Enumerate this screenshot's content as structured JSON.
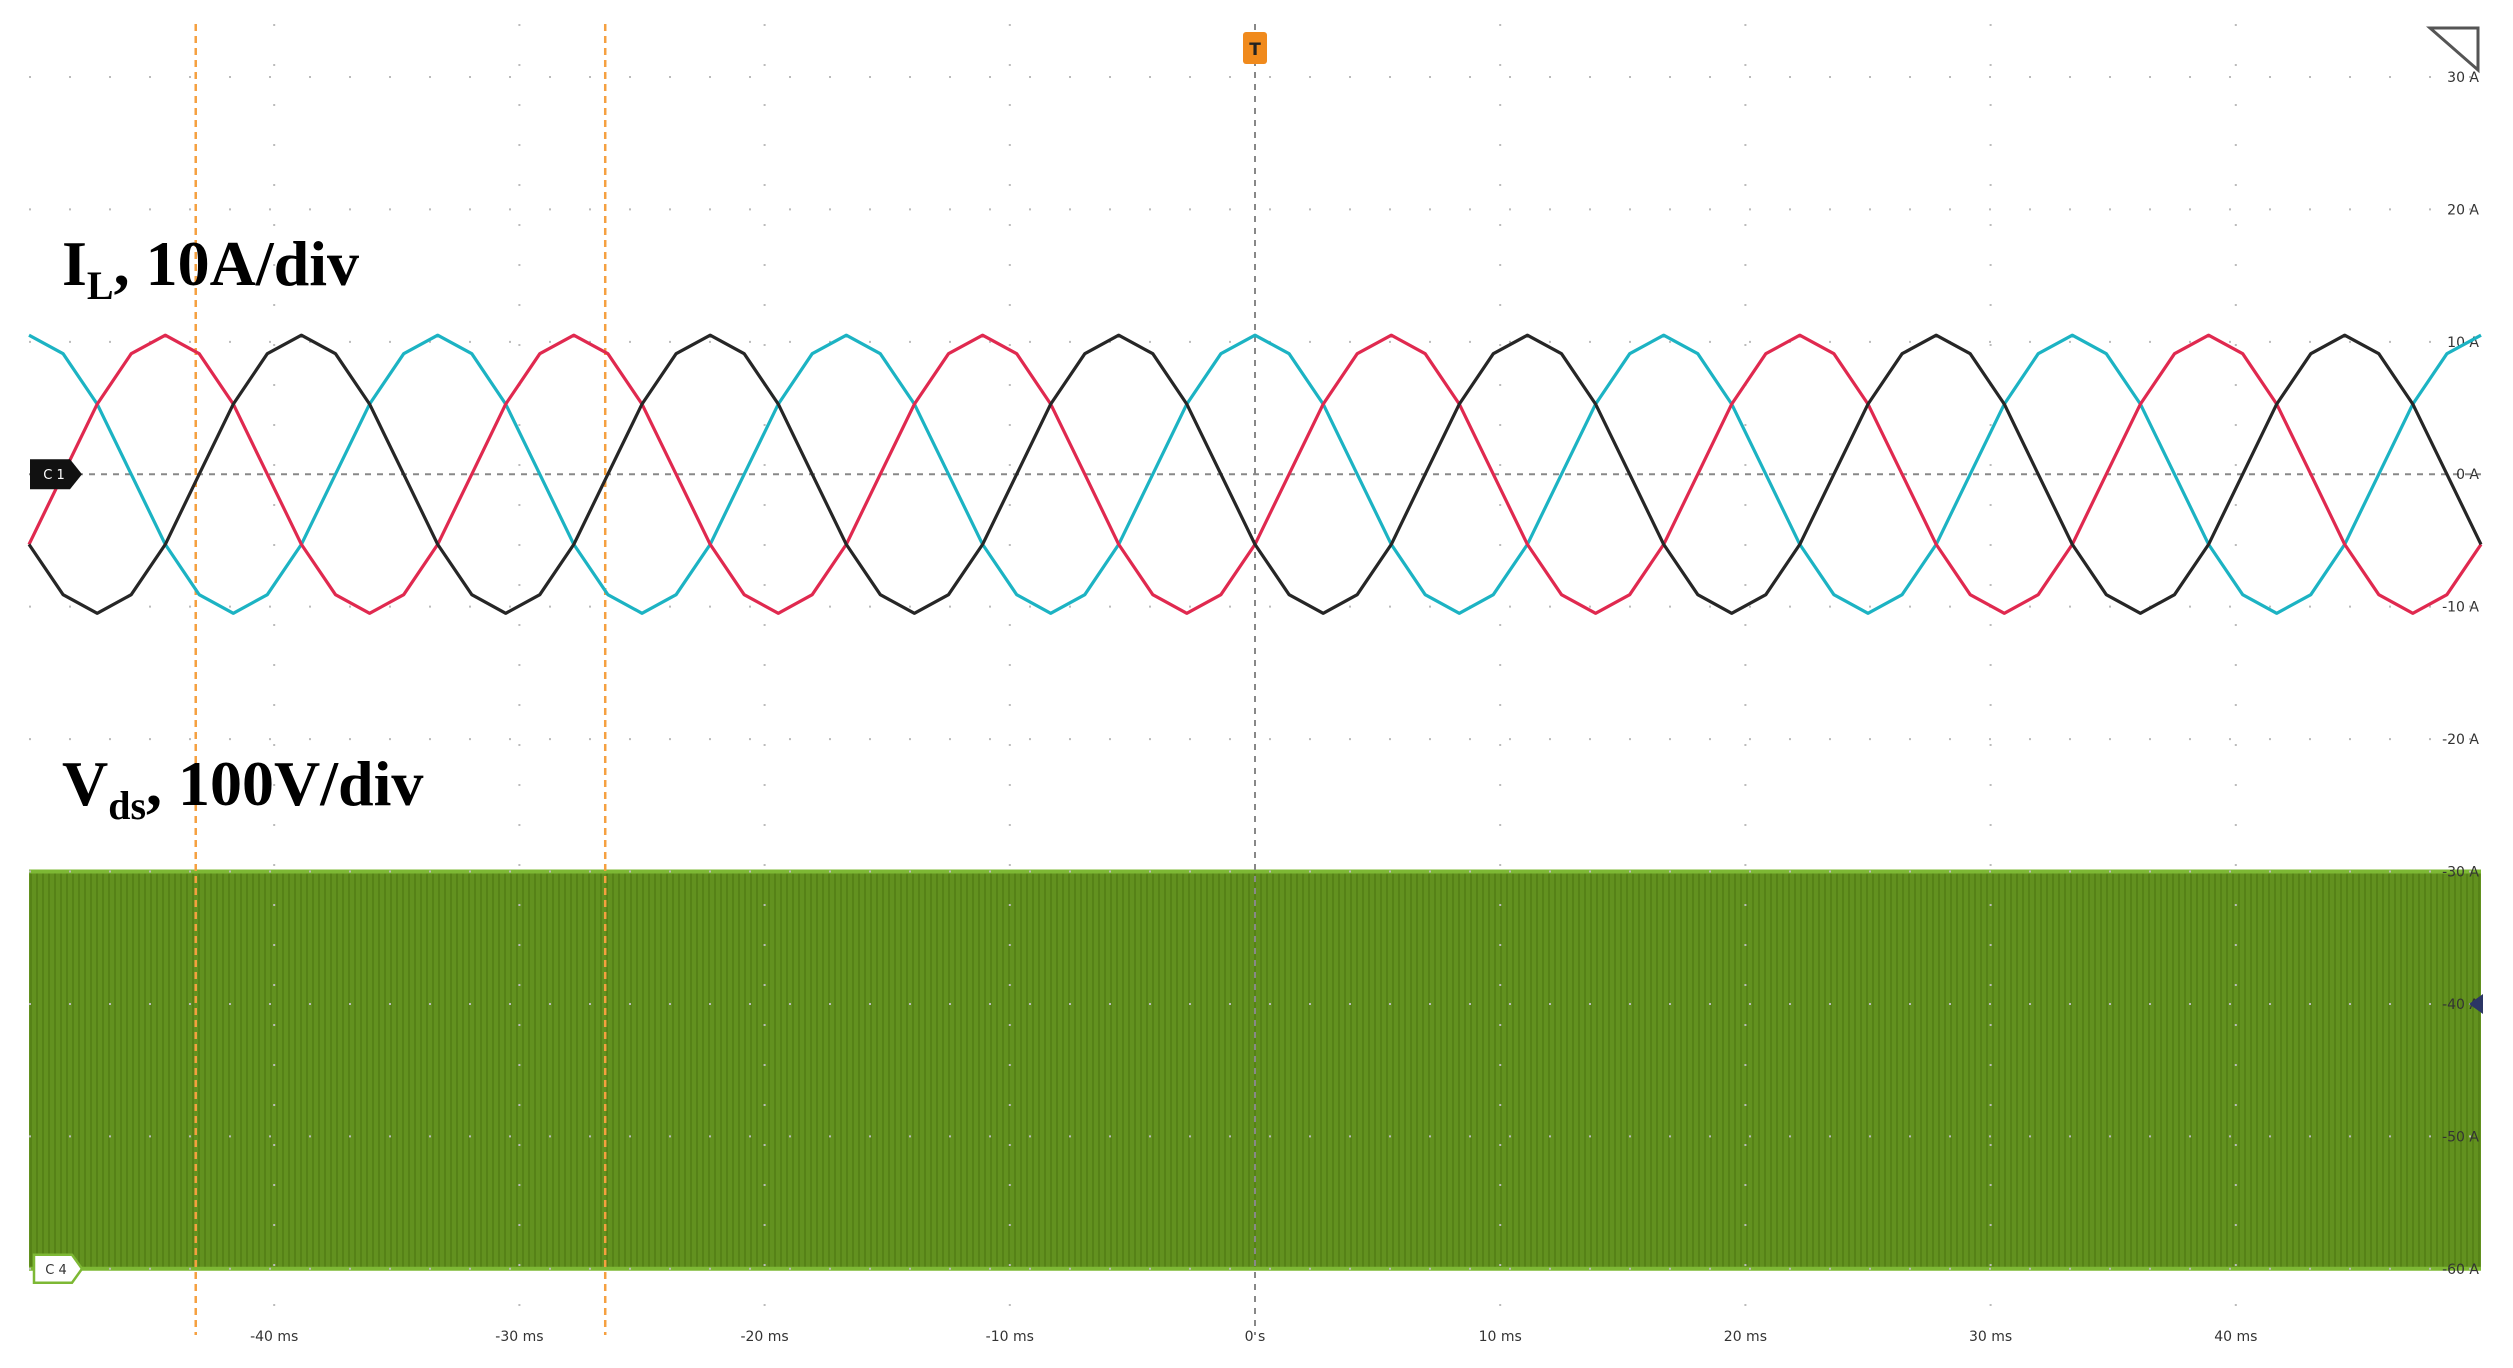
{
  "chart_data": {
    "type": "line",
    "annotations": [
      {
        "main": "I",
        "sub": "L",
        "rest": ", 10A/div"
      },
      {
        "main": "V",
        "sub": "ds",
        "rest": ", 100V/div"
      }
    ],
    "markers": {
      "ch1": "C 1",
      "ch4": "C 4",
      "trigger": "T"
    },
    "x": [
      -50,
      -48.61,
      -47.22,
      -45.83,
      -44.44,
      -43.06,
      -41.67,
      -40.28,
      -38.89,
      -37.5,
      -36.11,
      -34.72,
      -33.33,
      -31.94,
      -30.56,
      -29.17,
      -27.78,
      -26.39,
      -25,
      -23.61,
      -22.22,
      -20.83,
      -19.44,
      -18.06,
      -16.67,
      -15.28,
      -13.89,
      -12.5,
      -11.11,
      -9.72,
      -8.33,
      -6.94,
      -5.56,
      -4.17,
      -2.78,
      -1.39,
      0,
      1.39,
      2.78,
      4.17,
      5.56,
      6.94,
      8.33,
      9.72,
      11.11,
      12.5,
      13.89,
      15.28,
      16.67,
      18.06,
      19.44,
      20.83,
      22.22,
      23.61,
      25,
      26.39,
      27.78,
      29.17,
      30.56,
      31.94,
      33.33,
      34.72,
      36.11,
      37.5,
      38.89,
      40.28,
      41.67,
      43.06,
      44.44,
      45.83,
      47.22,
      48.61,
      50
    ],
    "series": [
      {
        "color": "#1cb3c3",
        "values": [
          10.5,
          9.1,
          5.3,
          0,
          -5.3,
          -9.1,
          -10.5,
          -9.1,
          -5.3,
          0,
          5.3,
          9.1,
          10.5,
          9.1,
          5.3,
          0,
          -5.3,
          -9.1,
          -10.5,
          -9.1,
          -5.3,
          0,
          5.3,
          9.1,
          10.5,
          9.1,
          5.3,
          0,
          -5.3,
          -9.1,
          -10.5,
          -9.1,
          -5.3,
          0,
          5.3,
          9.1,
          10.5,
          9.1,
          5.3,
          0,
          -5.3,
          -9.1,
          -10.5,
          -9.1,
          -5.3,
          0,
          5.3,
          9.1,
          10.5,
          9.1,
          5.3,
          0,
          -5.3,
          -9.1,
          -10.5,
          -9.1,
          -5.3,
          0,
          5.3,
          9.1,
          10.5,
          9.1,
          5.3,
          0,
          -5.3,
          -9.1,
          -10.5,
          -9.1,
          -5.3,
          0,
          5.3,
          9.1,
          10.5
        ]
      },
      {
        "color": "#e0294f",
        "values": [
          -5.3,
          0,
          5.3,
          9.1,
          10.5,
          9.1,
          5.3,
          0,
          -5.3,
          -9.1,
          -10.5,
          -9.1,
          -5.3,
          0,
          5.3,
          9.1,
          10.5,
          9.1,
          5.3,
          0,
          -5.3,
          -9.1,
          -10.5,
          -9.1,
          -5.3,
          0,
          5.3,
          9.1,
          10.5,
          9.1,
          5.3,
          0,
          -5.3,
          -9.1,
          -10.5,
          -9.1,
          -5.3,
          0,
          5.3,
          9.1,
          10.5,
          9.1,
          5.3,
          0,
          -5.3,
          -9.1,
          -10.5,
          -9.1,
          -5.3,
          0,
          5.3,
          9.1,
          10.5,
          9.1,
          5.3,
          0,
          -5.3,
          -9.1,
          -10.5,
          -9.1,
          -5.3,
          0,
          5.3,
          9.1,
          10.5,
          9.1,
          5.3,
          0,
          -5.3,
          -9.1,
          -10.5,
          -9.1,
          -5.3
        ]
      },
      {
        "color": "#262626",
        "values": [
          -5.3,
          -9.1,
          -10.5,
          -9.1,
          -5.3,
          0,
          5.3,
          9.1,
          10.5,
          9.1,
          5.3,
          0,
          -5.3,
          -9.1,
          -10.5,
          -9.1,
          -5.3,
          0,
          5.3,
          9.1,
          10.5,
          9.1,
          5.3,
          0,
          -5.3,
          -9.1,
          -10.5,
          -9.1,
          -5.3,
          0,
          5.3,
          9.1,
          10.5,
          9.1,
          5.3,
          0,
          -5.3,
          -9.1,
          -10.5,
          -9.1,
          -5.3,
          0,
          5.3,
          9.1,
          10.5,
          9.1,
          5.3,
          0,
          -5.3,
          -9.1,
          -10.5,
          -9.1,
          -5.3,
          0,
          5.3,
          9.1,
          10.5,
          9.1,
          5.3,
          0,
          -5.3,
          -9.1,
          -10.5,
          -9.1,
          -5.3,
          0,
          5.3,
          9.1,
          10.5,
          9.1,
          5.3,
          0,
          -5.3
        ]
      }
    ],
    "band": {
      "color": "#62911f",
      "range": [
        -60,
        -30
      ]
    },
    "cursors": [
      -43.2,
      -26.5
    ],
    "trigger": 0,
    "xlim": [
      -50,
      50
    ],
    "ylim": [
      -65,
      34
    ],
    "xticks": [
      {
        "value": -40,
        "label": "-40 ms"
      },
      {
        "value": -30,
        "label": "-30 ms"
      },
      {
        "value": -20,
        "label": "-20 ms"
      },
      {
        "value": -10,
        "label": "-10 ms"
      },
      {
        "value": 0,
        "label": "0 s"
      },
      {
        "value": 10,
        "label": "10 ms"
      },
      {
        "value": 20,
        "label": "20 ms"
      },
      {
        "value": 30,
        "label": "30 ms"
      },
      {
        "value": 40,
        "label": "40 ms"
      }
    ],
    "yticks": [
      {
        "value": 30,
        "label": "30 A"
      },
      {
        "value": 20,
        "label": "20 A"
      },
      {
        "value": 10,
        "label": "10 A"
      },
      {
        "value": 0,
        "label": "0 A"
      },
      {
        "value": -10,
        "label": "-10 A"
      },
      {
        "value": -20,
        "label": "-20 A"
      },
      {
        "value": -30,
        "label": "-30 A"
      },
      {
        "value": -40,
        "label": "-40 A"
      },
      {
        "value": -50,
        "label": "-50 A"
      },
      {
        "value": -60,
        "label": "-60 A"
      }
    ],
    "grid": true
  }
}
